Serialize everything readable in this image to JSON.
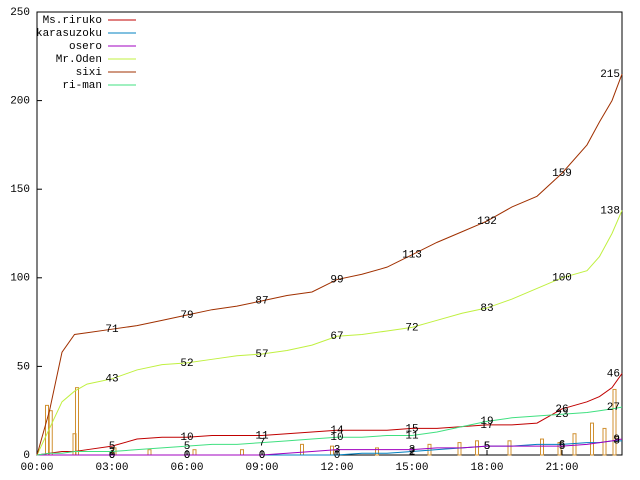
{
  "chart_data": {
    "type": "line",
    "x": [
      0,
      0.5,
      1,
      1.5,
      2,
      3,
      4,
      5,
      6,
      7,
      8,
      9,
      10,
      11,
      12,
      13,
      14,
      15,
      16,
      17,
      18,
      19,
      20,
      21,
      22,
      22.5,
      23,
      23.4
    ],
    "xlim": [
      0,
      23.4
    ],
    "xticks": [
      {
        "value": 0,
        "label": "00:00"
      },
      {
        "value": 3,
        "label": "03:00"
      },
      {
        "value": 6,
        "label": "06:00"
      },
      {
        "value": 9,
        "label": "09:00"
      },
      {
        "value": 12,
        "label": "12:00"
      },
      {
        "value": 15,
        "label": "15:00"
      },
      {
        "value": 18,
        "label": "18:00"
      },
      {
        "value": 21,
        "label": "21:00"
      }
    ],
    "ylim": [
      0,
      250
    ],
    "yticks": [
      0,
      50,
      100,
      150,
      200,
      250
    ],
    "series": [
      {
        "name": "Ms.riruko",
        "color": "#c00000",
        "values": [
          0,
          1,
          2,
          2,
          3,
          5,
          9,
          10,
          10,
          11,
          11,
          11,
          12,
          13,
          14,
          14,
          14,
          15,
          15,
          16,
          17,
          17,
          18,
          26,
          30,
          33,
          38,
          46
        ]
      },
      {
        "name": "karasuzoku",
        "color": "#0080c0",
        "values": [
          0,
          0,
          0,
          0,
          0,
          0,
          0,
          0,
          0,
          0,
          0,
          0,
          0,
          0,
          0,
          1,
          1,
          2,
          3,
          4,
          5,
          5,
          6,
          6,
          7,
          7,
          8,
          8
        ]
      },
      {
        "name": "osero",
        "color": "#a000c0",
        "values": [
          0,
          0,
          0,
          0,
          0,
          0,
          0,
          0,
          0,
          0,
          0,
          0,
          1,
          2,
          3,
          3,
          3,
          3,
          4,
          4,
          5,
          5,
          5,
          5,
          6,
          7,
          8,
          9
        ]
      },
      {
        "name": "Mr.Oden",
        "color": "#c0f040",
        "values": [
          0,
          15,
          30,
          36,
          40,
          43,
          48,
          51,
          52,
          54,
          56,
          57,
          59,
          62,
          67,
          68,
          70,
          72,
          76,
          80,
          83,
          88,
          94,
          100,
          104,
          112,
          125,
          138
        ]
      },
      {
        "name": "sixi",
        "color": "#a03000",
        "values": [
          0,
          25,
          58,
          68,
          69,
          71,
          73,
          76,
          79,
          82,
          84,
          87,
          90,
          92,
          99,
          102,
          106,
          113,
          120,
          126,
          132,
          140,
          146,
          159,
          175,
          188,
          200,
          215
        ]
      },
      {
        "name": "ri-man",
        "color": "#40e080",
        "values": [
          0,
          1,
          1,
          2,
          2,
          2,
          3,
          4,
          5,
          6,
          6,
          7,
          8,
          9,
          10,
          10,
          11,
          11,
          13,
          16,
          19,
          21,
          22,
          23,
          24,
          25,
          26,
          27
        ]
      }
    ],
    "bars": {
      "color": "#d09030",
      "x": [
        0.4,
        0.55,
        1.5,
        1.6,
        3.1,
        4.5,
        6.3,
        8.2,
        10.6,
        11.8,
        13.6,
        15.7,
        16.9,
        17.6,
        18.9,
        20.2,
        20.9,
        21.5,
        22.2,
        22.7,
        23.1
      ],
      "values": [
        28,
        25,
        12,
        38,
        4,
        3,
        3,
        3,
        6,
        5,
        4,
        6,
        7,
        8,
        8,
        9,
        7,
        12,
        18,
        15,
        37
      ]
    }
  }
}
